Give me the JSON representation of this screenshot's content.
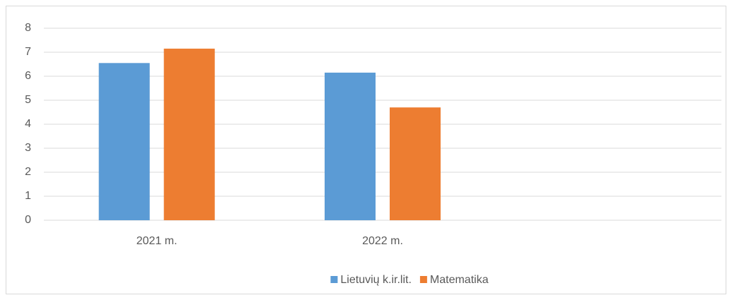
{
  "chart_data": {
    "type": "bar",
    "categories": [
      "2021 m.",
      "2022 m.",
      null
    ],
    "series": [
      {
        "name": "Lietuvių k.ir.lit.",
        "color": "#5b9bd5",
        "values": [
          6.55,
          6.15,
          null
        ]
      },
      {
        "name": "Matematika",
        "color": "#ed7d31",
        "values": [
          7.15,
          4.7,
          null
        ]
      }
    ],
    "ylim": [
      0,
      8
    ],
    "yticks": [
      0,
      1,
      2,
      3,
      4,
      5,
      6,
      7,
      8
    ],
    "grid": true,
    "legend": "bottom"
  }
}
